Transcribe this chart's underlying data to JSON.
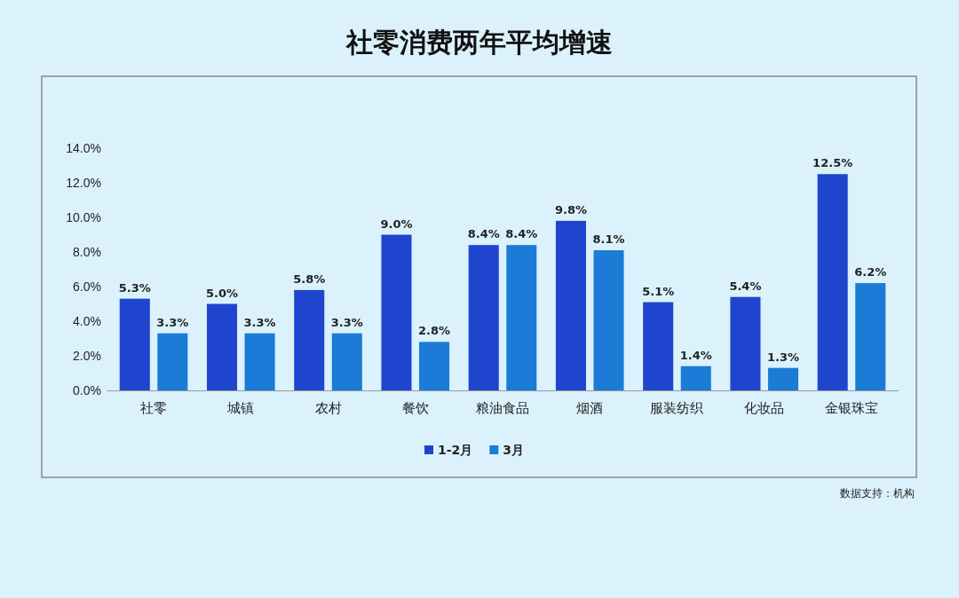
{
  "chart_data": {
    "type": "bar",
    "title": "社零消费两年平均增速",
    "categories": [
      "社零",
      "城镇",
      "农村",
      "餐饮",
      "粮油食品",
      "烟酒",
      "服装纺织",
      "化妆品",
      "金银珠宝"
    ],
    "series": [
      {
        "name": "1-2月",
        "color": "#1f45cf",
        "values": [
          5.3,
          5.0,
          5.8,
          9.0,
          8.4,
          9.8,
          5.1,
          5.4,
          12.5
        ],
        "value_labels": [
          "5.3%",
          "5.0%",
          "5.8%",
          "9.0%",
          "8.4%",
          "9.8%",
          "5.1%",
          "5.4%",
          "12.5%"
        ]
      },
      {
        "name": "3月",
        "color": "#1b7bd6",
        "values": [
          3.3,
          3.3,
          3.3,
          2.8,
          8.4,
          8.1,
          1.4,
          1.3,
          6.2
        ],
        "value_labels": [
          "3.3%",
          "3.3%",
          "3.3%",
          "2.8%",
          "8.4%",
          "8.1%",
          "1.4%",
          "1.3%",
          "6.2%"
        ]
      }
    ],
    "ylim": [
      0,
      14
    ],
    "yticks": [
      {
        "value": 0,
        "label": "0.0%"
      },
      {
        "value": 2,
        "label": "2.0%"
      },
      {
        "value": 4,
        "label": "4.0%"
      },
      {
        "value": 6,
        "label": "6.0%"
      },
      {
        "value": 8,
        "label": "8.0%"
      },
      {
        "value": 10,
        "label": "10.0%"
      },
      {
        "value": 12,
        "label": "12.0%"
      },
      {
        "value": 14,
        "label": "14.0%"
      }
    ],
    "legend": "bottom",
    "annotations": [
      "数据支持：机构"
    ]
  }
}
